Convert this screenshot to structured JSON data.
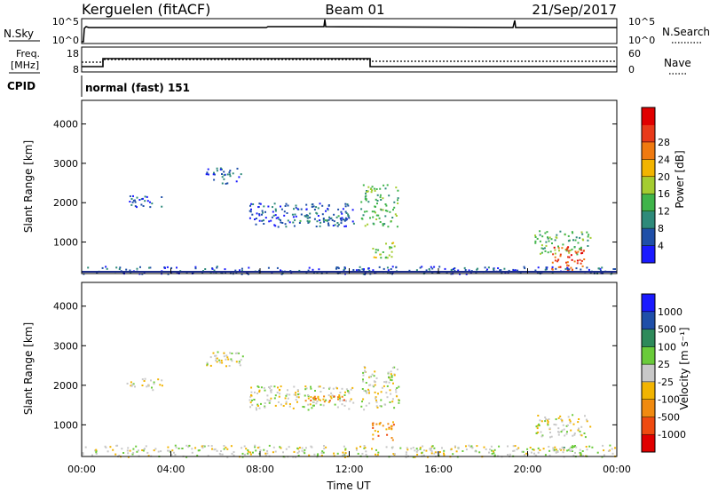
{
  "header": {
    "station": "Kerguelen (fitACF)",
    "beam": "Beam 01",
    "date": "21/Sep/2017"
  },
  "top_panels": {
    "nsky_label": "N.Sky",
    "nsearch_label": "N.Search",
    "nsky_ticks": [
      "10^5",
      "10^0"
    ],
    "nsearch_ticks": [
      "10^5",
      "10^0"
    ],
    "freq_label_1": "Freq.",
    "freq_label_2": "[MHz]",
    "freq_ticks": [
      "18",
      "8"
    ],
    "nave_label": "Nave",
    "nave_ticks": [
      "60",
      "0"
    ],
    "cpid_label": "CPID",
    "cpid_value": "normal (fast) 151"
  },
  "colors": {
    "power_scale": [
      "#1a1aff",
      "#1f4fa8",
      "#2e8a7a",
      "#3fb44a",
      "#a4cc30",
      "#f2b400",
      "#ef7a10",
      "#e83a1a",
      "#e00000"
    ],
    "velocity_scale": [
      "#e00000",
      "#ef4a10",
      "#f08a10",
      "#f2b400",
      "#c8c8c8",
      "#6acb3a",
      "#2e8a5a",
      "#1f4fa8",
      "#1a1aff"
    ]
  },
  "chart_data": [
    {
      "type": "heatmap",
      "quantity": "power",
      "ylabel": "Slant Range [km]",
      "yticks": [
        1000,
        2000,
        3000,
        4000
      ],
      "ylim": [
        200,
        4600
      ],
      "xlim": [
        0,
        24
      ],
      "colorbar_label": "Power [dB]",
      "colorbar_ticks": [
        "4",
        "8",
        "12",
        "16",
        "20",
        "24",
        "28"
      ],
      "colorbar_range": [
        0,
        32
      ],
      "regions": [
        {
          "t0": 2.0,
          "t1": 3.6,
          "r0": 1900,
          "r1": 2200,
          "level": 1
        },
        {
          "t0": 5.5,
          "t1": 7.2,
          "r0": 2500,
          "r1": 2900,
          "level": 1
        },
        {
          "t0": 7.5,
          "t1": 12.2,
          "r0": 1400,
          "r1": 2000,
          "level": 1
        },
        {
          "t0": 9.5,
          "t1": 12.0,
          "r0": 1500,
          "r1": 1750,
          "level": 2
        },
        {
          "t0": 12.5,
          "t1": 14.2,
          "r0": 1400,
          "r1": 2500,
          "level": 3
        },
        {
          "t0": 13.0,
          "t1": 14.0,
          "r0": 600,
          "r1": 1000,
          "level": 4
        },
        {
          "t0": 20.3,
          "t1": 22.8,
          "r0": 700,
          "r1": 1300,
          "level": 3
        },
        {
          "t0": 21.0,
          "t1": 22.5,
          "r0": 300,
          "r1": 900,
          "level": 7
        },
        {
          "t0": 0.0,
          "t1": 24.0,
          "r0": 200,
          "r1": 400,
          "level": 1
        }
      ]
    },
    {
      "type": "heatmap",
      "quantity": "velocity",
      "ylabel": "Slant Range [km]",
      "yticks": [
        1000,
        2000,
        3000,
        4000
      ],
      "ylim": [
        200,
        4600
      ],
      "xlim": [
        0,
        24
      ],
      "xlabel": "Time UT",
      "xticks": [
        "00:00",
        "04:00",
        "08:00",
        "12:00",
        "16:00",
        "20:00",
        "00:00"
      ],
      "colorbar_label": "Velocity [m s⁻¹]",
      "colorbar_ticks": [
        "-1000",
        "-500",
        "-100",
        "-25",
        "25",
        "100",
        "500",
        "1000"
      ],
      "regions": [
        {
          "t0": 2.0,
          "t1": 3.6,
          "r0": 1900,
          "r1": 2200,
          "level": 4
        },
        {
          "t0": 5.5,
          "t1": 7.2,
          "r0": 2500,
          "r1": 2900,
          "level": 4
        },
        {
          "t0": 7.5,
          "t1": 12.2,
          "r0": 1400,
          "r1": 2000,
          "level": 4
        },
        {
          "t0": 10.0,
          "t1": 12.0,
          "r0": 1600,
          "r1": 1750,
          "level": 2
        },
        {
          "t0": 12.5,
          "t1": 14.2,
          "r0": 1400,
          "r1": 2500,
          "level": 4
        },
        {
          "t0": 13.0,
          "t1": 14.0,
          "r0": 600,
          "r1": 1100,
          "level": 2
        },
        {
          "t0": 20.3,
          "t1": 22.8,
          "r0": 700,
          "r1": 1300,
          "level": 4
        },
        {
          "t0": 21.0,
          "t1": 22.5,
          "r0": 300,
          "r1": 500,
          "level": 5
        },
        {
          "t0": 0.0,
          "t1": 24.0,
          "r0": 200,
          "r1": 500,
          "level": 4
        }
      ]
    }
  ]
}
